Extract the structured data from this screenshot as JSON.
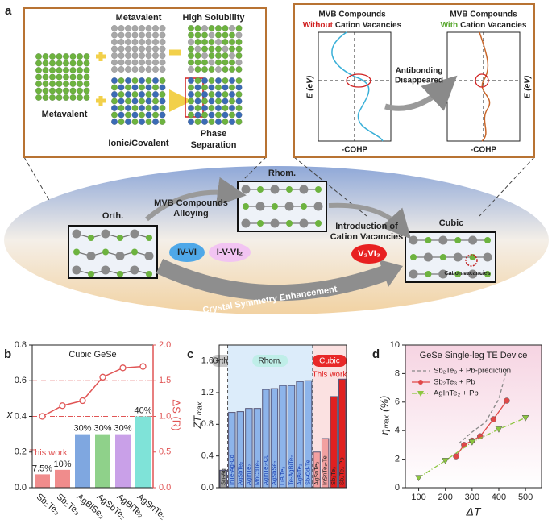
{
  "panel_a": {
    "panel_label": "a",
    "metavalent_top": "Metavalent",
    "high_solubility": "High Solubility",
    "metavalent_left": "Metavalent",
    "ionic_covalent": "Ionic/Covalent",
    "phase_separation": [
      "Phase",
      "Separation"
    ],
    "left_plot_title": {
      "line1": "MVB Compounds",
      "emph": "Without",
      "rest": "Cation Vacancies"
    },
    "right_plot_title": {
      "line1": "MVB Compounds",
      "emph": "With",
      "rest": "Cation Vacancies"
    },
    "energy_label_left": "E (eV)",
    "energy_label_right": "E (eV)",
    "cohp_label_left": "-COHP",
    "cohp_label_right": "-COHP",
    "antibonding": [
      "Antibonding",
      "Disappeared"
    ],
    "orth": "Orth.",
    "rhom": "Rhom.",
    "cubic": "Cubic",
    "alloying": [
      "MVB Compounds",
      "Alloying"
    ],
    "iv_vi": "IV-VI",
    "i_v_vi2": "I-V-VI₂",
    "introduction": [
      "Introduction of",
      "Cation Vacancies"
    ],
    "v2vi3": "V₂VI₃",
    "cation_vacancies": "Cation vacancies",
    "symmetry": "Crystal Symmetry Enhancement"
  },
  "chart_data": [
    {
      "panel_label": "b",
      "type": "bar",
      "title": "Cubic GeSe",
      "annotation": "This work",
      "categories": [
        "Sb₂Te₃",
        "Sb₂Te₃",
        "AgBiSe₂",
        "AgSbTe₂",
        "AgBiTe₂",
        "AgSnTe₂"
      ],
      "values": [
        0.075,
        0.1,
        0.3,
        0.3,
        0.3,
        0.4
      ],
      "value_labels": [
        "7.5%",
        "10%",
        "30%",
        "30%",
        "30%",
        "40%"
      ],
      "colors": [
        "#f08c8c",
        "#f08c8c",
        "#7fa7e0",
        "#8fd18a",
        "#c9a0e8",
        "#7fe3d8"
      ],
      "ylabel": "x",
      "y2label": "ΔS (R)",
      "ylim": [
        0,
        0.8
      ],
      "yticks": [
        {
          "value": 0,
          "label": "0.0"
        },
        {
          "value": 0.2,
          "label": "0.2"
        },
        {
          "value": 0.4,
          "label": "0.4"
        },
        {
          "value": 0.6,
          "label": "0.6"
        },
        {
          "value": 0.8,
          "label": "0.8"
        }
      ],
      "y2lim": [
        0,
        2
      ],
      "y2ticks": [
        {
          "value": 0,
          "label": "0.0"
        },
        {
          "value": 0.5,
          "label": "0.5"
        },
        {
          "value": 1,
          "label": "1.0"
        },
        {
          "value": 1.5,
          "label": "1.5"
        },
        {
          "value": 2,
          "label": "2.0"
        }
      ],
      "reference_lines": [
        0.4,
        0.6
      ],
      "series": [
        {
          "axis": "y2",
          "color": "#e05555",
          "values": [
            1.0,
            1.15,
            1.22,
            1.55,
            1.68,
            1.7
          ]
        }
      ]
    },
    {
      "panel_label": "c",
      "type": "bar",
      "ylabel": "ZTₘₐₓ",
      "ylim": [
        0,
        1.8
      ],
      "yticks": [
        {
          "value": 0,
          "label": "0.0"
        },
        {
          "value": 0.4,
          "label": "0.4"
        },
        {
          "value": 0.8,
          "label": "0.8"
        },
        {
          "value": 1.2,
          "label": "1.2"
        },
        {
          "value": 1.6,
          "label": "1.6"
        }
      ],
      "groups": [
        {
          "name": "Ortho.",
          "categories": [
            "Sn-Ag"
          ],
          "values": [
            0.22
          ],
          "colors": [
            "#9a9a9a"
          ]
        },
        {
          "name": "Rhom.",
          "categories": [
            "InTe-Ag-Cd",
            "AgSbTe₂",
            "AgInTe₂",
            "MnCdTe₂",
            "AgInTe₂-Cu",
            "AgSbSe₂",
            "LiBiTe₂",
            "Te-AgBiTe₂",
            "AgBiTe₂",
            "Sb-Cd-Te"
          ],
          "values": [
            0.95,
            0.96,
            1.0,
            1.0,
            1.24,
            1.25,
            1.29,
            1.29,
            1.34,
            1.35
          ],
          "colors": [
            "#8db4ea",
            "#8db4ea",
            "#8db4ea",
            "#8db4ea",
            "#8db4ea",
            "#8db4ea",
            "#8db4ea",
            "#8db4ea",
            "#8db4ea",
            "#8db4ea"
          ]
        },
        {
          "name": "Cubic",
          "note": "This work",
          "categories": [
            "AgSnTe₂",
            "InSnTe₂-Te",
            "Sb₂Te₃",
            "Sb₂Te₃-Pb"
          ],
          "values": [
            0.45,
            0.62,
            1.15,
            1.37
          ],
          "colors": [
            "#f2a0a0",
            "#f2a0a0",
            "#e02020",
            "#e02020"
          ]
        }
      ]
    },
    {
      "panel_label": "d",
      "type": "line",
      "title": "GeSe Single-leg TE Device",
      "xlabel": "ΔT",
      "ylabel": "ηₘₐₓ (%)",
      "xlim": [
        50,
        560
      ],
      "xticks": [
        100,
        200,
        300,
        400,
        500
      ],
      "ylim": [
        0,
        10
      ],
      "yticks": [
        0,
        2,
        4,
        6,
        8,
        10
      ],
      "legend": "upper left",
      "series": [
        {
          "name": "Sb₂Te₃ + Pb-prediction",
          "color": "#888888",
          "dash": "4,3",
          "marker": "none",
          "x": [
            250,
            300,
            350,
            400,
            430
          ],
          "values": [
            3.1,
            3.9,
            4.6,
            6.2,
            8.3
          ]
        },
        {
          "name": "Sb₂Te₃ + Pb",
          "color": "#e04848",
          "dash": "none",
          "marker": "circle",
          "x": [
            240,
            270,
            300,
            330,
            380,
            430
          ],
          "values": [
            2.2,
            3.0,
            3.3,
            3.6,
            4.8,
            6.1
          ]
        },
        {
          "name": "AgInTe₂ + Pb",
          "color": "#8cc63f",
          "dash": "6,2,1,2",
          "marker": "triangle",
          "x": [
            100,
            200,
            300,
            400,
            500
          ],
          "values": [
            0.7,
            1.9,
            3.2,
            4.1,
            4.9
          ]
        }
      ]
    }
  ]
}
